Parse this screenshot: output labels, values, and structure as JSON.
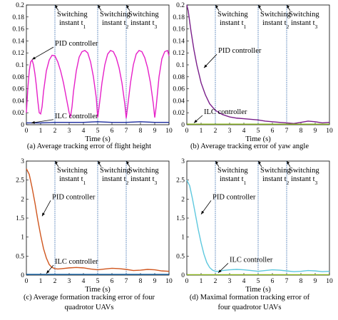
{
  "chart_data": [
    {
      "type": "line",
      "caption": "(a) Average tracking error of flight height",
      "xlabel": "Time (s)",
      "xlim": [
        0,
        10
      ],
      "ylim": [
        0,
        0.2
      ],
      "xticks": [
        "0",
        "1",
        "2",
        "3",
        "4",
        "5",
        "6",
        "7",
        "8",
        "9",
        "10"
      ],
      "yticks": [
        "0",
        "0.02",
        "0.04",
        "0.06",
        "0.08",
        "0.1",
        "0.12",
        "0.14",
        "0.16",
        "0.18",
        "0.2"
      ],
      "switching_times": [
        2,
        5,
        7
      ],
      "switch_labels": [
        {
          "l1": "Switching",
          "l2": "instant t",
          "sub": "1"
        },
        {
          "l1": "Switching",
          "l2": "instant t",
          "sub": "2"
        },
        {
          "l1": "Switching",
          "l2": "instant t",
          "sub": "3"
        }
      ],
      "annotations": [
        {
          "text": "PID controller",
          "tx": 2.0,
          "ty": 0.132,
          "ax": 0.4,
          "ay": 0.109
        },
        {
          "text": "ILC controller",
          "tx": 2.0,
          "ty": 0.011,
          "ax": 0.35,
          "ay": 0.003
        }
      ],
      "series": [
        {
          "color": "#e620c8",
          "x": [
            0,
            0.1,
            0.2,
            0.3,
            0.4,
            0.5,
            0.6,
            0.7,
            0.8,
            0.9,
            1.0,
            1.1,
            1.2,
            1.4,
            1.6,
            1.8,
            2.0,
            2.2,
            2.4,
            2.6,
            2.8,
            3.0,
            3.1,
            3.2,
            3.3,
            3.5,
            3.7,
            3.9,
            4.1,
            4.3,
            4.5,
            4.7,
            4.9,
            5.0,
            5.1,
            5.3,
            5.5,
            5.7,
            5.9,
            6.1,
            6.3,
            6.5,
            6.7,
            6.9,
            7.0,
            7.1,
            7.3,
            7.5,
            7.7,
            7.9,
            8.1,
            8.3,
            8.5,
            8.7,
            8.9,
            9.0,
            9.1,
            9.3,
            9.5,
            9.7,
            9.9,
            10.0
          ],
          "y": [
            0.02,
            0.06,
            0.09,
            0.105,
            0.108,
            0.1,
            0.085,
            0.065,
            0.04,
            0.02,
            0.018,
            0.03,
            0.055,
            0.09,
            0.108,
            0.116,
            0.115,
            0.105,
            0.09,
            0.07,
            0.045,
            0.02,
            0.014,
            0.03,
            0.055,
            0.09,
            0.113,
            0.122,
            0.124,
            0.12,
            0.105,
            0.08,
            0.045,
            0.012,
            0.03,
            0.07,
            0.1,
            0.118,
            0.124,
            0.122,
            0.112,
            0.095,
            0.07,
            0.035,
            0.011,
            0.03,
            0.07,
            0.1,
            0.118,
            0.124,
            0.122,
            0.112,
            0.095,
            0.07,
            0.035,
            0.012,
            0.03,
            0.08,
            0.11,
            0.122,
            0.124,
            0.115
          ]
        },
        {
          "color": "#1a2a9c",
          "x": [
            0,
            1,
            2,
            3,
            4,
            5,
            6,
            7,
            8,
            9,
            10
          ],
          "y": [
            0.003,
            0.003,
            0.004,
            0.004,
            0.004,
            0.005,
            0.004,
            0.004,
            0.005,
            0.004,
            0.004
          ]
        }
      ]
    },
    {
      "type": "line",
      "caption": "(b) Average tracking error of yaw angle",
      "xlabel": "Time (s)",
      "xlim": [
        0,
        10
      ],
      "ylim": [
        0,
        0.2
      ],
      "xticks": [
        "0",
        "1",
        "2",
        "3",
        "4",
        "5",
        "6",
        "7",
        "8",
        "9",
        "10"
      ],
      "yticks": [
        "0",
        "0.02",
        "0.04",
        "0.06",
        "0.08",
        "0.1",
        "0.12",
        "0.14",
        "0.16",
        "0.18",
        "0.2"
      ],
      "switching_times": [
        2,
        5,
        7
      ],
      "switch_labels": [
        {
          "l1": "Switching",
          "l2": "instant t",
          "sub": "1"
        },
        {
          "l1": "Switching",
          "l2": "instant t",
          "sub": "2"
        },
        {
          "l1": "Switching",
          "l2": "instant t",
          "sub": "3"
        }
      ],
      "annotations": [
        {
          "text": "PID controller",
          "tx": 2.2,
          "ty": 0.12,
          "ax": 1.2,
          "ay": 0.095
        },
        {
          "text": "ILC controller",
          "tx": 1.2,
          "ty": 0.018,
          "ax": 0.5,
          "ay": 0.003
        }
      ],
      "series": [
        {
          "color": "#7a1e8a",
          "x": [
            0,
            0.1,
            0.2,
            0.3,
            0.5,
            0.7,
            1.0,
            1.3,
            1.6,
            2.0,
            2.5,
            3.0,
            3.5,
            4.0,
            4.5,
            5.0,
            5.5,
            6.0,
            6.5,
            7.0,
            7.5,
            8.0,
            8.5,
            9.0,
            9.5,
            10.0
          ],
          "y": [
            0.2,
            0.19,
            0.172,
            0.155,
            0.125,
            0.1,
            0.07,
            0.05,
            0.035,
            0.024,
            0.017,
            0.013,
            0.011,
            0.01,
            0.009,
            0.008,
            0.006,
            0.005,
            0.004,
            0.003,
            0.002,
            0.004,
            0.006,
            0.005,
            0.003,
            0.004
          ]
        },
        {
          "color": "#8ab51e",
          "x": [
            0,
            1,
            2,
            3,
            4,
            5,
            6,
            7,
            8,
            9,
            10
          ],
          "y": [
            0.001,
            0.001,
            0.001,
            0.001,
            0.001,
            0.001,
            0.001,
            0.001,
            0.001,
            0.001,
            0.001
          ]
        }
      ]
    },
    {
      "type": "line",
      "caption_lines": [
        "(c) Average formation tracking error of four",
        "quadrotor UAVs"
      ],
      "xlabel": "Time (s)",
      "xlim": [
        0,
        10
      ],
      "ylim": [
        0,
        3
      ],
      "xticks": [
        "0",
        "1",
        "2",
        "3",
        "4",
        "5",
        "6",
        "7",
        "8",
        "9",
        "10"
      ],
      "yticks": [
        "0",
        "0.5",
        "1",
        "1.5",
        "2",
        "2.5",
        "3"
      ],
      "switching_times": [
        2,
        5,
        7
      ],
      "switch_labels": [
        {
          "l1": "Switching",
          "l2": "instant t",
          "sub": "1"
        },
        {
          "l1": "Switching",
          "l2": "instant t",
          "sub": "2"
        },
        {
          "l1": "Switching",
          "l2": "instant t",
          "sub": "3"
        }
      ],
      "annotations": [
        {
          "text": "PID controller",
          "tx": 1.8,
          "ty": 2.0,
          "ax": 1.1,
          "ay": 1.55
        },
        {
          "text": "ILC controller",
          "tx": 2.0,
          "ty": 0.3,
          "ax": 1.4,
          "ay": 0.04
        }
      ],
      "series": [
        {
          "color": "#d0561e",
          "x": [
            0,
            0.2,
            0.4,
            0.6,
            0.8,
            1.0,
            1.2,
            1.4,
            1.6,
            1.8,
            2.0,
            2.2,
            2.5,
            3.0,
            3.5,
            4.0,
            4.5,
            5.0,
            5.5,
            6.0,
            6.5,
            7.0,
            7.5,
            8.0,
            8.5,
            9.0,
            9.5,
            10.0
          ],
          "y": [
            2.8,
            2.65,
            2.3,
            1.9,
            1.45,
            1.05,
            0.7,
            0.45,
            0.28,
            0.2,
            0.17,
            0.16,
            0.17,
            0.19,
            0.2,
            0.19,
            0.16,
            0.14,
            0.16,
            0.18,
            0.17,
            0.15,
            0.12,
            0.13,
            0.15,
            0.14,
            0.11,
            0.1
          ]
        },
        {
          "color": "#1f6fb4",
          "x": [
            0,
            1,
            2,
            3,
            4,
            5,
            6,
            7,
            8,
            9,
            10
          ],
          "y": [
            0.02,
            0.02,
            0.02,
            0.02,
            0.02,
            0.02,
            0.02,
            0.02,
            0.02,
            0.02,
            0.02
          ]
        }
      ]
    },
    {
      "type": "line",
      "caption_lines": [
        "(d) Maximal formation tracking error of",
        "four quadrotor UAVs"
      ],
      "xlabel": "Time (s)",
      "xlim": [
        0,
        10
      ],
      "ylim": [
        0,
        3
      ],
      "xticks": [
        "0",
        "1",
        "2",
        "3",
        "4",
        "5",
        "6",
        "7",
        "8",
        "9",
        "10"
      ],
      "yticks": [
        "0",
        "0.5",
        "1",
        "1.5",
        "2",
        "2.5",
        "3"
      ],
      "switching_times": [
        2,
        5,
        7
      ],
      "switch_labels": [
        {
          "l1": "Switching",
          "l2": "instant t",
          "sub": "1"
        },
        {
          "l1": "Switching",
          "l2": "instant t",
          "sub": "2"
        },
        {
          "l1": "Switching",
          "l2": "instant t",
          "sub": "3"
        }
      ],
      "annotations": [
        {
          "text": "PID controller",
          "tx": 1.8,
          "ty": 2.0,
          "ax": 1.0,
          "ay": 1.6
        },
        {
          "text": "ILC controller",
          "tx": 3.0,
          "ty": 0.35,
          "ax": 2.2,
          "ay": 0.06
        }
      ],
      "series": [
        {
          "color": "#5ec8de",
          "x": [
            0,
            0.2,
            0.4,
            0.6,
            0.8,
            1.0,
            1.2,
            1.4,
            1.6,
            1.8,
            2.0,
            2.2,
            2.5,
            3.0,
            3.5,
            4.0,
            4.5,
            5.0,
            5.5,
            6.0,
            6.5,
            7.0,
            7.5,
            8.0,
            8.5,
            9.0,
            9.5,
            10.0
          ],
          "y": [
            2.5,
            2.35,
            2.0,
            1.6,
            1.2,
            0.85,
            0.55,
            0.33,
            0.2,
            0.13,
            0.1,
            0.1,
            0.12,
            0.14,
            0.15,
            0.14,
            0.12,
            0.1,
            0.12,
            0.14,
            0.13,
            0.11,
            0.09,
            0.1,
            0.12,
            0.11,
            0.09,
            0.1
          ]
        },
        {
          "color": "#8ab51e",
          "x": [
            0,
            1,
            2,
            3,
            4,
            5,
            6,
            7,
            8,
            9,
            10
          ],
          "y": [
            0.01,
            0.01,
            0.01,
            0.01,
            0.01,
            0.01,
            0.01,
            0.01,
            0.01,
            0.01,
            0.01
          ]
        }
      ]
    }
  ]
}
